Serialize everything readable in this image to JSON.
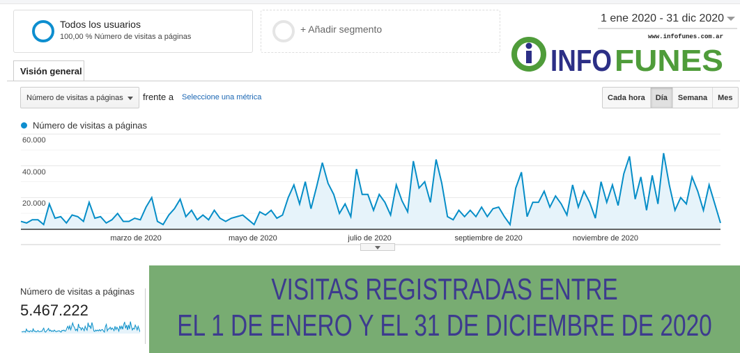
{
  "segments": [
    {
      "title": "Todos los usuarios",
      "subtitle": "100,00 % Número de visitas a páginas"
    },
    {
      "title": "+ Añadir segmento"
    }
  ],
  "date_range": "1 ene 2020 - 31 dic 2020",
  "logo": {
    "url_text": "www.infofunes.com.ar",
    "word1": "INFO",
    "word2": "FUNES",
    "colors": {
      "green": "#4f9c3a",
      "navy": "#2c2f86"
    }
  },
  "tabs": [
    {
      "label": "Visión general"
    }
  ],
  "controls": {
    "metric_select": "Número de visitas a páginas",
    "vs_label": "frente a",
    "select_metric_link": "Seleccione una métrica",
    "granularity": [
      "Cada hora",
      "Día",
      "Semana",
      "Mes"
    ],
    "granularity_selected": "Día"
  },
  "chart_data": {
    "type": "area",
    "legend": [
      "Número de visitas a páginas"
    ],
    "series": [
      {
        "name": "Número de visitas a páginas",
        "color": "#058dc7",
        "values": [
          5000,
          4000,
          6000,
          6000,
          3000,
          16000,
          7000,
          8000,
          4000,
          9000,
          8000,
          5000,
          17000,
          7000,
          8000,
          4000,
          6000,
          10000,
          5000,
          5000,
          7000,
          6000,
          14000,
          20000,
          5000,
          3000,
          9000,
          13000,
          19000,
          8000,
          12000,
          6000,
          9000,
          6000,
          12000,
          7000,
          5000,
          7000,
          8000,
          9000,
          6000,
          3000,
          11000,
          9000,
          12000,
          7000,
          9000,
          20000,
          28000,
          16000,
          30000,
          13000,
          27000,
          42000,
          29000,
          22000,
          10000,
          16000,
          8000,
          38000,
          22000,
          22000,
          12000,
          22000,
          17000,
          9000,
          28000,
          18000,
          11000,
          43000,
          26000,
          30000,
          17000,
          44000,
          29000,
          8000,
          6000,
          12000,
          8000,
          12000,
          8000,
          14000,
          8000,
          13000,
          14000,
          8000,
          3000,
          26000,
          36000,
          8000,
          17000,
          17000,
          24000,
          14000,
          21000,
          16000,
          9000,
          28000,
          14000,
          24000,
          17000,
          7000,
          30000,
          17000,
          28000,
          15000,
          35000,
          46000,
          19000,
          33000,
          12000,
          34000,
          16000,
          48000,
          28000,
          12000,
          20000,
          16000,
          33000,
          24000,
          12000,
          28000,
          16000,
          4000
        ]
      }
    ],
    "x_range": [
      "2020-01-01",
      "2020-12-31"
    ],
    "x_ticks": [
      {
        "label": "marzo de 2020",
        "date": "2020-03-01"
      },
      {
        "label": "mayo de 2020",
        "date": "2020-05-01"
      },
      {
        "label": "julio de 2020",
        "date": "2020-07-01"
      },
      {
        "label": "septiembre de 2020",
        "date": "2020-09-01"
      },
      {
        "label": "noviembre de 2020",
        "date": "2020-11-01"
      }
    ],
    "y_ticks": [
      {
        "label": "60.000",
        "value": 60000
      },
      {
        "label": "40.000",
        "value": 40000
      },
      {
        "label": "20.000",
        "value": 20000
      }
    ],
    "ylim": [
      0,
      60000
    ],
    "grid": true
  },
  "summary": {
    "label": "Número de visitas a páginas",
    "value": "5.467.222"
  },
  "banner": {
    "line1": "VISITAS REGISTRADAS ENTRE",
    "line2": "EL 1 DE ENERO Y EL 31 DE DICIEMBRE DE 2020",
    "bg": "#78ac72",
    "text_color": "#3d3b8e"
  }
}
